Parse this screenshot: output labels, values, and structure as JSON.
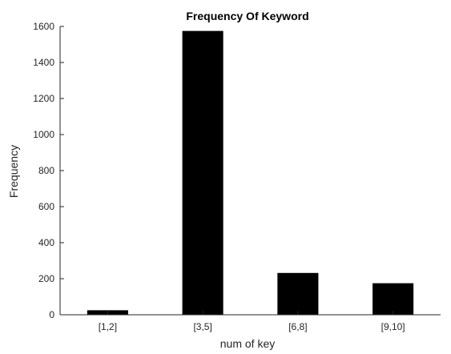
{
  "chart_data": {
    "type": "bar",
    "title": "Frequency Of Keyword",
    "xlabel": "num of key",
    "ylabel": "Frequency",
    "categories": [
      "[1,2]",
      "[3,5]",
      "[6,8]",
      "[9,10]"
    ],
    "values": [
      25,
      1575,
      232,
      175
    ],
    "ylim": [
      0,
      1600
    ],
    "yticks": [
      0,
      200,
      400,
      600,
      800,
      1000,
      1200,
      1400,
      1600
    ],
    "grid": false,
    "legend": "none",
    "bar_color": "#000000",
    "axis_color": "#262626"
  }
}
